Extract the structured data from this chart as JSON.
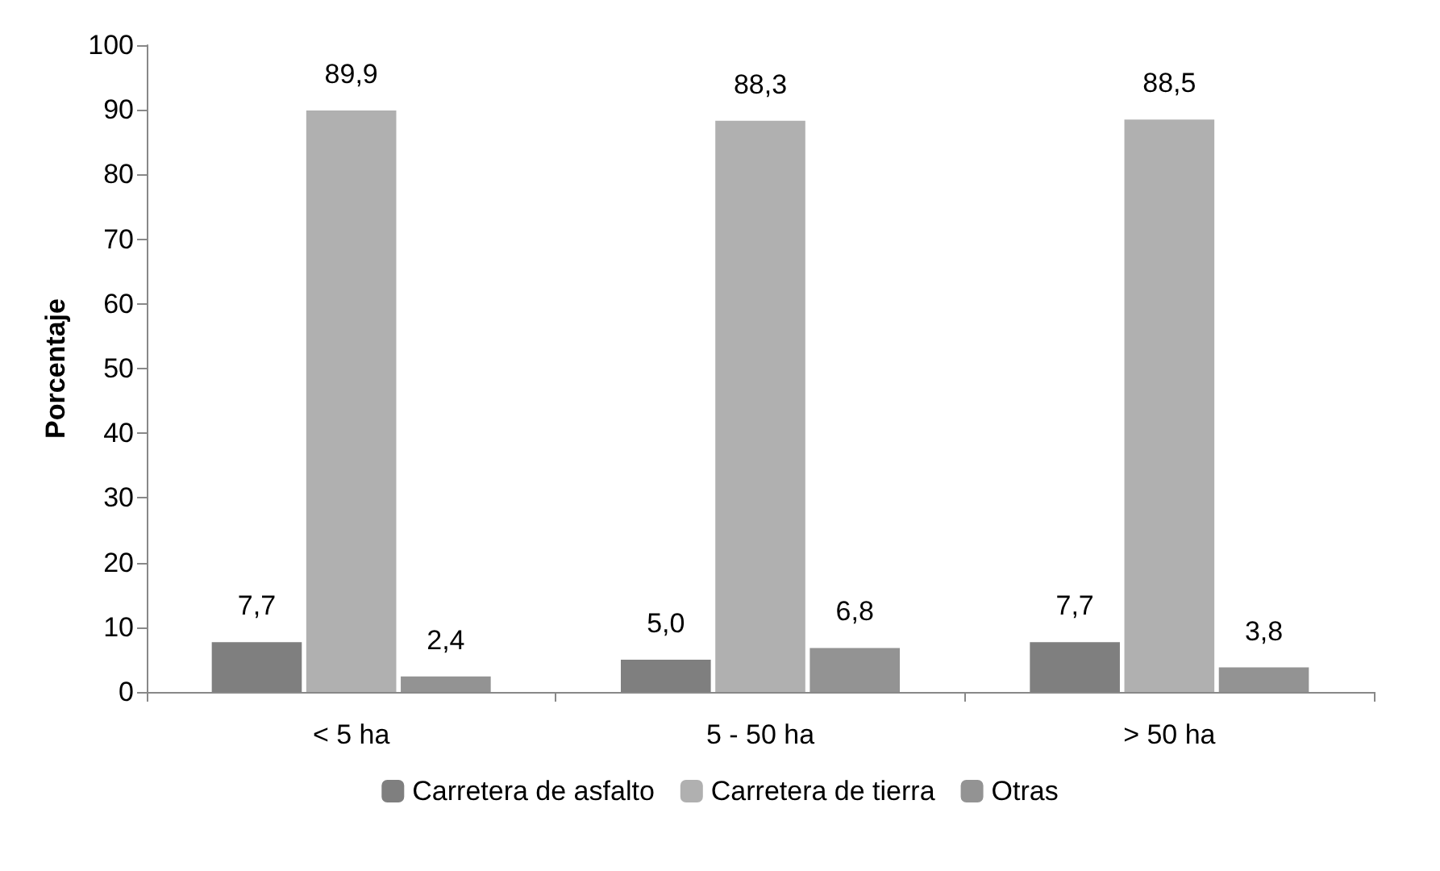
{
  "chart_data": {
    "type": "bar",
    "ylabel": "Porcentaje",
    "categories": [
      "< 5 ha",
      "5 - 50 ha",
      "> 50 ha"
    ],
    "series": [
      {
        "name": "Carretera de asfalto",
        "color": "#7f7f7f",
        "values": [
          7.7,
          5.0,
          7.7
        ],
        "value_labels": [
          "7,7",
          "5,0",
          "7,7"
        ]
      },
      {
        "name": "Carretera de tierra",
        "color": "#b0b0b0",
        "values": [
          89.9,
          88.3,
          88.5
        ],
        "value_labels": [
          "89,9",
          "88,3",
          "88,5"
        ]
      },
      {
        "name": "Otras",
        "color": "#939393",
        "values": [
          2.4,
          6.8,
          3.8
        ],
        "value_labels": [
          "2,4",
          "6,8",
          "3,8"
        ]
      }
    ],
    "ylim": [
      0,
      100
    ],
    "yticks": [
      0,
      10,
      20,
      30,
      40,
      50,
      60,
      70,
      80,
      90,
      100
    ],
    "grid": false,
    "legend": "bottom"
  }
}
